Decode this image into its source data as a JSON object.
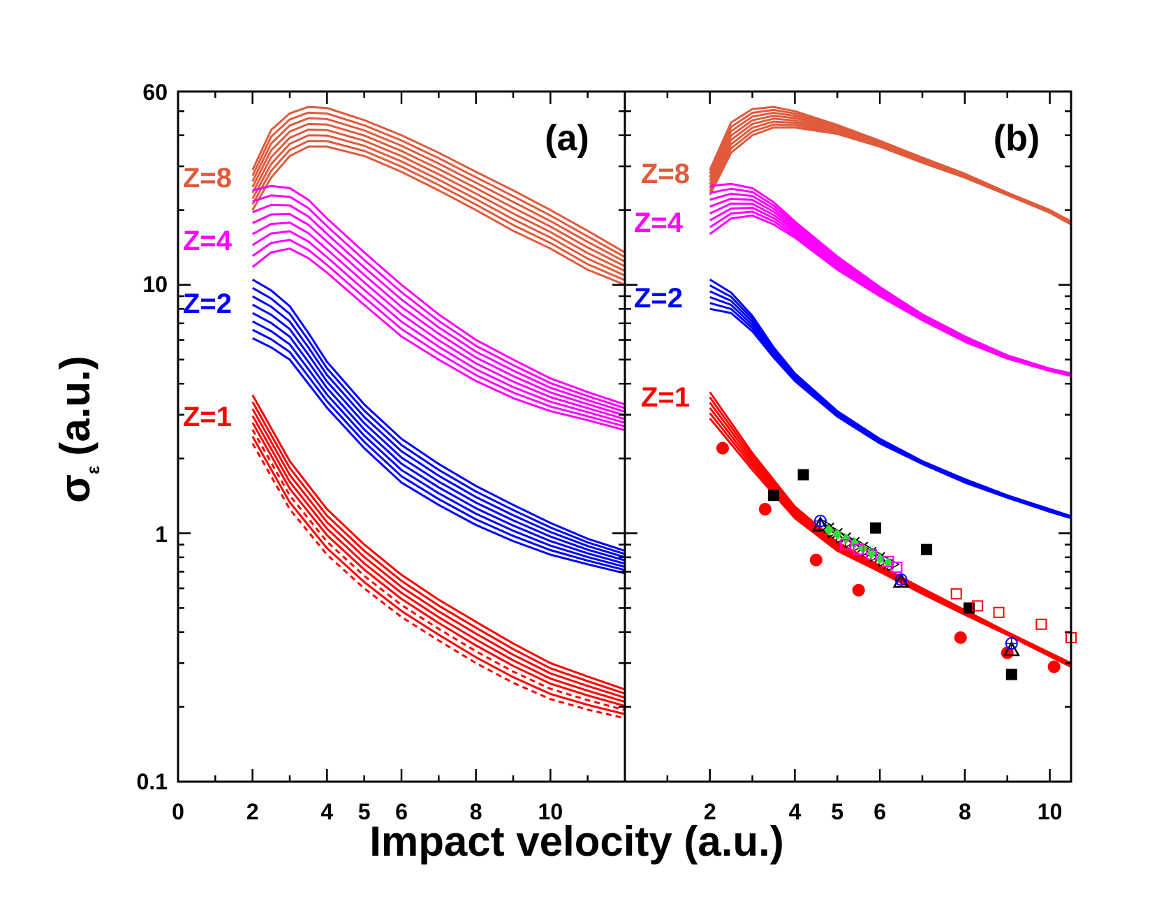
{
  "chart_data": [
    {
      "panel": "(a)",
      "type": "line",
      "x_axis": {
        "range": [
          0,
          12
        ],
        "ticks": [
          0,
          2,
          4,
          5,
          6,
          8,
          10
        ],
        "tick_labels": [
          "0",
          "2",
          "4",
          "5",
          "6",
          "8",
          "10"
        ]
      },
      "y_axis": {
        "scale": "log",
        "range": [
          0.1,
          60
        ],
        "tick_labels": [
          "0.1",
          "1",
          "10",
          "60"
        ]
      },
      "series": [
        {
          "name": "Z=8",
          "color": "#e05a3c",
          "band_count": 8,
          "x": [
            2,
            2.5,
            3,
            3.5,
            4,
            5,
            6,
            7,
            8,
            9,
            10,
            11,
            12
          ],
          "upper": [
            29,
            42,
            49,
            52,
            51.5,
            46,
            40,
            34,
            28.5,
            24,
            20,
            16.5,
            13.5
          ],
          "lower": [
            20,
            27,
            33,
            36,
            36,
            33,
            28.5,
            24,
            20,
            16.5,
            14,
            11.5,
            10
          ]
        },
        {
          "name": "Z=4",
          "color": "#ff00ff",
          "band_count": 8,
          "x": [
            2,
            2.5,
            3,
            3.5,
            4,
            5,
            6,
            7,
            8,
            9,
            10,
            11,
            12
          ],
          "upper": [
            24,
            25,
            24.5,
            22,
            18.5,
            13.5,
            10,
            7.6,
            6,
            5,
            4.2,
            3.7,
            3.3
          ],
          "lower": [
            11.8,
            13.5,
            14,
            12.8,
            11.2,
            8.3,
            6.2,
            5,
            4.1,
            3.5,
            3.1,
            2.85,
            2.6
          ]
        },
        {
          "name": "Z=2",
          "color": "#0000ff",
          "band_count": 8,
          "x": [
            2,
            2.5,
            3,
            3.5,
            4,
            5,
            6,
            7,
            8,
            9,
            10,
            11,
            12
          ],
          "upper": [
            10.5,
            9.5,
            8.2,
            6.4,
            4.9,
            3.3,
            2.4,
            1.9,
            1.55,
            1.3,
            1.1,
            0.95,
            0.85
          ],
          "lower": [
            6.1,
            5.6,
            5,
            4,
            3.2,
            2.2,
            1.6,
            1.3,
            1.08,
            0.93,
            0.82,
            0.75,
            0.69
          ]
        },
        {
          "name": "Z=1",
          "color": "#ff0000",
          "band_count": 8,
          "x": [
            2,
            3,
            4,
            5,
            6,
            7,
            8,
            9,
            10,
            11,
            12
          ],
          "upper": [
            3.6,
            1.95,
            1.25,
            0.9,
            0.68,
            0.54,
            0.44,
            0.36,
            0.3,
            0.265,
            0.235
          ],
          "lower": [
            2.3,
            1.25,
            0.82,
            0.6,
            0.46,
            0.37,
            0.3,
            0.25,
            0.215,
            0.195,
            0.18
          ]
        }
      ]
    },
    {
      "panel": "(b)",
      "type": "line",
      "x_axis": {
        "range": [
          0,
          10.5
        ],
        "ticks": [
          2,
          4,
          5,
          6,
          8,
          10
        ],
        "tick_labels": [
          "2",
          "4",
          "5",
          "6",
          "8",
          "10"
        ]
      },
      "y_axis": {
        "scale": "log",
        "range": [
          0.1,
          60
        ]
      },
      "series": [
        {
          "name": "Z=8",
          "color": "#e05a3c",
          "band_count": 8,
          "x": [
            2,
            2.5,
            3,
            3.5,
            4,
            5,
            6,
            7,
            8,
            9,
            10,
            10.5
          ],
          "upper": [
            29,
            45,
            51,
            52,
            50,
            44,
            38,
            32.5,
            28,
            23.5,
            20,
            18
          ],
          "lower": [
            23,
            34,
            40,
            43,
            43,
            40.5,
            36,
            31,
            27,
            23,
            19.5,
            17.5
          ]
        },
        {
          "name": "Z=4",
          "color": "#ff00ff",
          "band_count": 8,
          "x": [
            2,
            2.5,
            3,
            3.5,
            4,
            5,
            6,
            7,
            8,
            9,
            10,
            10.5
          ],
          "upper": [
            25,
            25.5,
            24.5,
            21.5,
            18,
            13,
            9.8,
            7.6,
            6.2,
            5.2,
            4.6,
            4.4
          ],
          "lower": [
            16,
            18.5,
            19,
            17.5,
            15.5,
            11.5,
            9,
            7.2,
            5.9,
            5.05,
            4.5,
            4.3
          ]
        },
        {
          "name": "Z=2",
          "color": "#0000ff",
          "band_count": 6,
          "x": [
            2,
            2.5,
            3,
            3.5,
            4,
            5,
            6,
            7,
            8,
            9,
            10,
            10.5
          ],
          "upper": [
            10.5,
            9.3,
            7.5,
            5.6,
            4.4,
            3.1,
            2.4,
            1.95,
            1.65,
            1.42,
            1.25,
            1.17
          ],
          "lower": [
            8,
            7.7,
            6.5,
            5.1,
            4.1,
            2.95,
            2.3,
            1.9,
            1.6,
            1.39,
            1.22,
            1.15
          ]
        },
        {
          "name": "Z=1",
          "color": "#ff0000",
          "band_count": 6,
          "x": [
            2,
            3,
            4,
            5,
            6,
            7,
            8,
            9,
            10,
            10.5
          ],
          "upper": [
            3.7,
            2.1,
            1.28,
            0.92,
            0.74,
            0.6,
            0.49,
            0.4,
            0.33,
            0.3
          ],
          "lower": [
            2.9,
            1.8,
            1.15,
            0.85,
            0.7,
            0.57,
            0.47,
            0.39,
            0.32,
            0.29
          ]
        }
      ],
      "experimental_points": [
        {
          "marker": "filled-circle",
          "color": "#ff0000",
          "points": [
            [
              2.3,
              2.2
            ],
            [
              3.3,
              1.25
            ],
            [
              4.5,
              0.78
            ],
            [
              5.5,
              0.59
            ],
            [
              7.9,
              0.38
            ],
            [
              9.0,
              0.33
            ],
            [
              10.1,
              0.29
            ]
          ]
        },
        {
          "marker": "filled-square",
          "color": "#000000",
          "points": [
            [
              3.5,
              1.42
            ],
            [
              4.2,
              1.72
            ],
            [
              5.9,
              1.05
            ],
            [
              7.1,
              0.86
            ],
            [
              8.1,
              0.5
            ],
            [
              9.1,
              0.27
            ]
          ]
        },
        {
          "marker": "open-square",
          "color": "#ff0000",
          "points": [
            [
              7.8,
              0.57
            ],
            [
              8.3,
              0.51
            ],
            [
              8.8,
              0.48
            ],
            [
              9.8,
              0.43
            ],
            [
              10.5,
              0.38
            ]
          ]
        },
        {
          "marker": "open-triangle",
          "color": "#000000",
          "points": [
            [
              4.6,
              1.08
            ],
            [
              6.5,
              0.64
            ],
            [
              9.1,
              0.34
            ]
          ]
        },
        {
          "marker": "open-circle-plus",
          "color": "#0000ff",
          "points": [
            [
              4.6,
              1.12
            ],
            [
              6.5,
              0.65
            ],
            [
              9.1,
              0.36
            ]
          ]
        },
        {
          "marker": "cross",
          "color": "#000000",
          "points": [
            [
              4.8,
              1.05
            ],
            [
              5.0,
              1.0
            ],
            [
              5.2,
              0.96
            ],
            [
              5.4,
              0.92
            ],
            [
              5.6,
              0.88
            ],
            [
              5.8,
              0.84
            ],
            [
              6.0,
              0.8
            ],
            [
              6.2,
              0.75
            ]
          ]
        },
        {
          "marker": "open-right-triangle",
          "color": "#000000",
          "points": [
            [
              4.7,
              1.08
            ],
            [
              4.9,
              1.02
            ],
            [
              5.1,
              0.97
            ],
            [
              5.3,
              0.93
            ],
            [
              5.5,
              0.9
            ],
            [
              5.7,
              0.86
            ],
            [
              5.9,
              0.82
            ],
            [
              6.1,
              0.78
            ],
            [
              6.3,
              0.75
            ]
          ]
        },
        {
          "marker": "filled-diamond",
          "color": "#33dd33",
          "points": [
            [
              4.8,
              1.03
            ],
            [
              5.0,
              0.99
            ],
            [
              5.2,
              0.95
            ],
            [
              5.4,
              0.91
            ],
            [
              5.6,
              0.87
            ],
            [
              5.8,
              0.83
            ],
            [
              6.0,
              0.79
            ],
            [
              6.2,
              0.76
            ]
          ]
        },
        {
          "marker": "open-square",
          "color": "#ff00ff",
          "points": [
            [
              5.2,
              0.9
            ],
            [
              5.5,
              0.86
            ],
            [
              5.8,
              0.82
            ],
            [
              6.2,
              0.77
            ],
            [
              6.4,
              0.73
            ]
          ]
        }
      ]
    }
  ],
  "axes_text": {
    "ylabel": "σ",
    "ylabel_sub": "ε",
    "ylabel_unit": "(a.u.)",
    "xlabel": "Impact velocity (a.u.)",
    "y_tick_labels": [
      "60",
      "10",
      "1",
      "0.1"
    ]
  },
  "panel_labels": {
    "a": "(a)",
    "b": "(b)"
  },
  "z_labels_a": {
    "z8": "Z=8",
    "z4": "Z=4",
    "z2": "Z=2",
    "z1": "Z=1"
  },
  "z_labels_b": {
    "z8": "Z=8",
    "z4": "Z=4",
    "z2": "Z=2",
    "z1": "Z=1"
  },
  "colors": {
    "z8": "#e05a3c",
    "z4": "#ff00ff",
    "z2": "#0000ff",
    "z1": "#ff0000",
    "frame": "#000000"
  }
}
